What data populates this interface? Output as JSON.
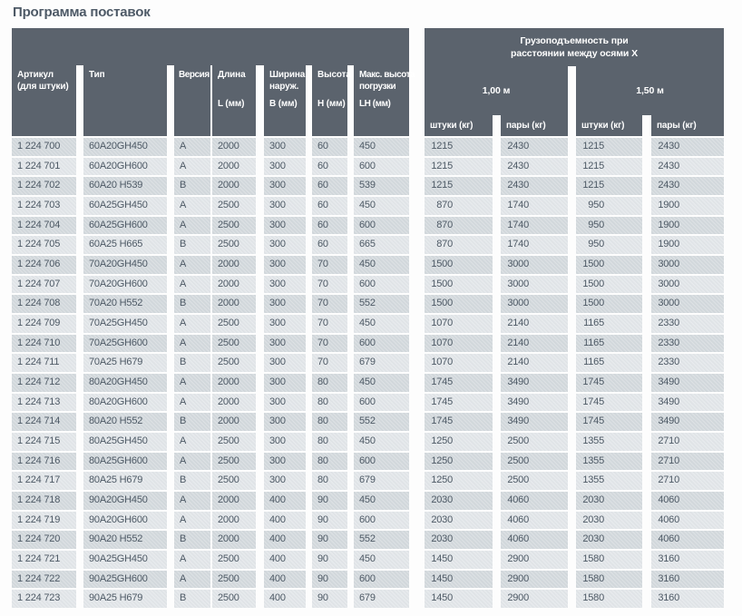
{
  "title": "Программа поставок",
  "colors": {
    "header_bg": "#5b636d",
    "row_odd": "#d3d9dd",
    "row_even": "#e2e6e9",
    "data_text": "#4d5965",
    "header_text": "#ffffff",
    "title_text": "#4d5966"
  },
  "table": {
    "left_headers": [
      {
        "label": "Артикул",
        "label2": "(для штуки)",
        "unit": ""
      },
      {
        "label": "Тип",
        "label2": "",
        "unit": ""
      },
      {
        "label": "Версия",
        "label2": "",
        "unit": ""
      },
      {
        "label": "Длина",
        "label2": "",
        "unit": "L (мм)"
      },
      {
        "label": "Ширина",
        "label2": "наруж.",
        "unit": "B (мм)"
      },
      {
        "label": "Высота",
        "label2": "",
        "unit": "H (мм)"
      },
      {
        "label": "Макс. высота",
        "label2": "погрузки",
        "unit": "LH (мм)"
      }
    ],
    "capacity_header": {
      "title_line1": "Грузоподъемность при",
      "title_line2": "расстоянии между осями X",
      "groups": [
        "1,00 м",
        "1,50 м"
      ],
      "units": [
        "штуки (кг)",
        "пары (кг)",
        "штуки (кг)",
        "пары (кг)"
      ]
    },
    "col_keys": [
      "article",
      "type",
      "version",
      "length",
      "width",
      "height",
      "load-height",
      "pieces-100",
      "pairs-100",
      "pieces-150",
      "pairs-150"
    ],
    "rows": [
      [
        "1 224 700",
        "60A20GH450",
        "A",
        "2000",
        "300",
        "60",
        "450",
        "1215",
        "2430",
        "1215",
        "2430"
      ],
      [
        "1 224 701",
        "60A20GH600",
        "A",
        "2000",
        "300",
        "60",
        "600",
        "1215",
        "2430",
        "1215",
        "2430"
      ],
      [
        "1 224 702",
        "60A20 H539",
        "B",
        "2000",
        "300",
        "60",
        "539",
        "1215",
        "2430",
        "1215",
        "2430"
      ],
      [
        "1 224 703",
        "60A25GH450",
        "A",
        "2500",
        "300",
        "60",
        "450",
        "870",
        "1740",
        "950",
        "1900"
      ],
      [
        "1 224 704",
        "60A25GH600",
        "A",
        "2500",
        "300",
        "60",
        "600",
        "870",
        "1740",
        "950",
        "1900"
      ],
      [
        "1 224 705",
        "60A25 H665",
        "B",
        "2500",
        "300",
        "60",
        "665",
        "870",
        "1740",
        "950",
        "1900"
      ],
      [
        "1 224 706",
        "70A20GH450",
        "A",
        "2000",
        "300",
        "70",
        "450",
        "1500",
        "3000",
        "1500",
        "3000"
      ],
      [
        "1 224 707",
        "70A20GH600",
        "A",
        "2000",
        "300",
        "70",
        "600",
        "1500",
        "3000",
        "1500",
        "3000"
      ],
      [
        "1 224 708",
        "70A20 H552",
        "B",
        "2000",
        "300",
        "70",
        "552",
        "1500",
        "3000",
        "1500",
        "3000"
      ],
      [
        "1 224 709",
        "70A25GH450",
        "A",
        "2500",
        "300",
        "70",
        "450",
        "1070",
        "2140",
        "1165",
        "2330"
      ],
      [
        "1 224 710",
        "70A25GH600",
        "A",
        "2500",
        "300",
        "70",
        "600",
        "1070",
        "2140",
        "1165",
        "2330"
      ],
      [
        "1 224 711",
        "70A25 H679",
        "B",
        "2500",
        "300",
        "70",
        "679",
        "1070",
        "2140",
        "1165",
        "2330"
      ],
      [
        "1 224 712",
        "80A20GH450",
        "A",
        "2000",
        "300",
        "80",
        "450",
        "1745",
        "3490",
        "1745",
        "3490"
      ],
      [
        "1 224 713",
        "80A20GH600",
        "A",
        "2000",
        "300",
        "80",
        "600",
        "1745",
        "3490",
        "1745",
        "3490"
      ],
      [
        "1 224 714",
        "80A20 H552",
        "B",
        "2000",
        "300",
        "80",
        "552",
        "1745",
        "3490",
        "1745",
        "3490"
      ],
      [
        "1 224 715",
        "80A25GH450",
        "A",
        "2500",
        "300",
        "80",
        "450",
        "1250",
        "2500",
        "1355",
        "2710"
      ],
      [
        "1 224 716",
        "80A25GH600",
        "A",
        "2500",
        "300",
        "80",
        "600",
        "1250",
        "2500",
        "1355",
        "2710"
      ],
      [
        "1 224 717",
        "80A25 H679",
        "B",
        "2500",
        "300",
        "80",
        "679",
        "1250",
        "2500",
        "1355",
        "2710"
      ],
      [
        "1 224 718",
        "90A20GH450",
        "A",
        "2000",
        "400",
        "90",
        "450",
        "2030",
        "4060",
        "2030",
        "4060"
      ],
      [
        "1 224 719",
        "90A20GH600",
        "A",
        "2000",
        "400",
        "90",
        "600",
        "2030",
        "4060",
        "2030",
        "4060"
      ],
      [
        "1 224 720",
        "90A20 H552",
        "B",
        "2000",
        "400",
        "90",
        "552",
        "2030",
        "4060",
        "2030",
        "4060"
      ],
      [
        "1 224 721",
        "90A25GH450",
        "A",
        "2500",
        "400",
        "90",
        "450",
        "1450",
        "2900",
        "1580",
        "3160"
      ],
      [
        "1 224 722",
        "90A25GH600",
        "A",
        "2500",
        "400",
        "90",
        "600",
        "1450",
        "2900",
        "1580",
        "3160"
      ],
      [
        "1 224 723",
        "90A25 H679",
        "B",
        "2500",
        "400",
        "90",
        "679",
        "1450",
        "2900",
        "1580",
        "3160"
      ]
    ]
  }
}
